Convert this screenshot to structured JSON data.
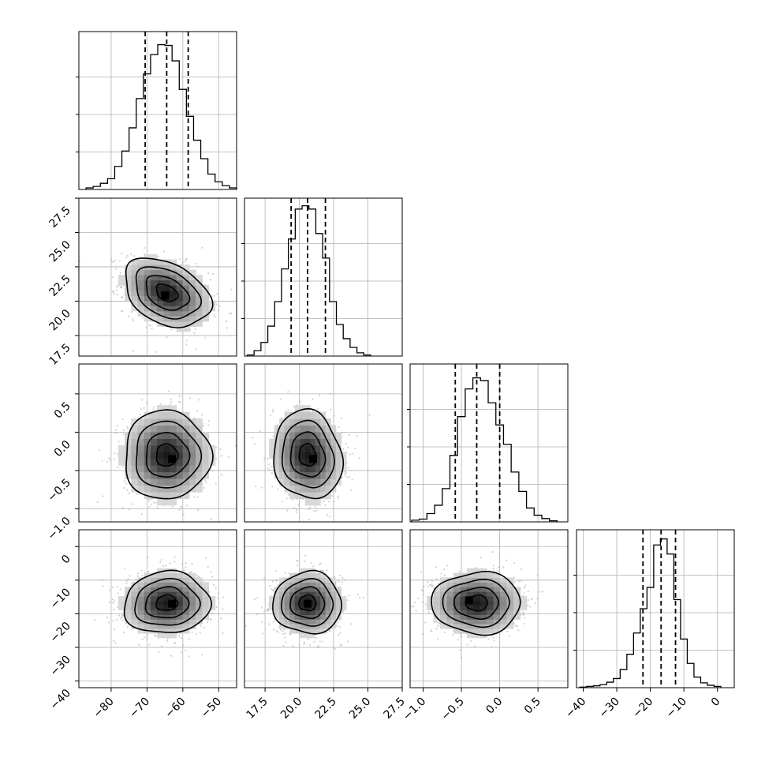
{
  "chart_data": {
    "type": "corner",
    "variables": [
      {
        "range": [
          -89,
          -45
        ],
        "ticks": [
          -80,
          -70,
          -60,
          -50
        ],
        "tick_labels": [
          "−80",
          "−70",
          "−60",
          "−50"
        ]
      },
      {
        "range": [
          16,
          27.5
        ],
        "ticks": [
          17.5,
          20.0,
          22.5,
          25.0,
          27.5
        ],
        "tick_labels": [
          "17.5",
          "20.0",
          "22.5",
          "25.0",
          "27.5"
        ]
      },
      {
        "range": [
          -1.17,
          0.89
        ],
        "ticks": [
          -1.0,
          -0.5,
          0.0,
          0.5
        ],
        "tick_labels": [
          "−1.0",
          "−0.5",
          "0.0",
          "0.5"
        ]
      },
      {
        "range": [
          -42,
          5
        ],
        "ticks": [
          -40,
          -30,
          -20,
          -10,
          0
        ],
        "tick_labels": [
          "−40",
          "−30",
          "−20",
          "−10",
          "0"
        ]
      }
    ],
    "histograms": [
      {
        "quantiles": [
          -70.5,
          -64.5,
          -58.5
        ],
        "edges": [
          -87,
          -85,
          -83,
          -81,
          -79,
          -77,
          -75,
          -73,
          -71,
          -69,
          -67,
          -65,
          -63,
          -61,
          -59,
          -57,
          -55,
          -53,
          -51,
          -49,
          -47,
          -45
        ],
        "counts": [
          2,
          4,
          8,
          14,
          30,
          50,
          80,
          118,
          150,
          175,
          188,
          187,
          167,
          130,
          95,
          64,
          40,
          20,
          10,
          5,
          2
        ],
        "ylim": [
          0,
          205
        ]
      },
      {
        "quantiles": [
          19.4,
          20.6,
          21.9
        ],
        "edges": [
          16.2,
          16.7,
          17.2,
          17.7,
          18.2,
          18.7,
          19.2,
          19.7,
          20.2,
          20.7,
          21.2,
          21.7,
          22.2,
          22.7,
          23.2,
          23.7,
          24.2,
          24.7,
          25.2
        ],
        "counts": [
          2,
          10,
          25,
          55,
          100,
          160,
          215,
          270,
          276,
          270,
          225,
          180,
          100,
          58,
          32,
          16,
          6,
          2
        ],
        "ylim": [
          0,
          290
        ]
      },
      {
        "quantiles": [
          -0.58,
          -0.3,
          0.0
        ],
        "edges": [
          -1.15,
          -1.05,
          -0.95,
          -0.85,
          -0.75,
          -0.65,
          -0.55,
          -0.45,
          -0.35,
          -0.25,
          -0.15,
          -0.05,
          0.05,
          0.15,
          0.25,
          0.35,
          0.45,
          0.55,
          0.65,
          0.75
        ],
        "counts": [
          3,
          5,
          15,
          30,
          60,
          120,
          190,
          240,
          260,
          255,
          215,
          175,
          140,
          90,
          55,
          25,
          12,
          6,
          2
        ],
        "ylim": [
          0,
          285
        ]
      },
      {
        "quantiles": [
          -22.2,
          -16.8,
          -12.5
        ],
        "edges": [
          -41,
          -39,
          -37,
          -35,
          -33,
          -31,
          -29,
          -27,
          -25,
          -23,
          -21,
          -19,
          -17,
          -15,
          -13,
          -11,
          -9,
          -7,
          -5,
          -3,
          -1,
          1
        ],
        "counts": [
          2,
          4,
          6,
          10,
          18,
          30,
          60,
          110,
          180,
          260,
          330,
          470,
          490,
          440,
          290,
          160,
          80,
          35,
          16,
          8,
          4
        ],
        "ylim": [
          0,
          520
        ]
      }
    ],
    "joint": [
      {
        "x": 0,
        "y": 1,
        "mean": [
          -64.5,
          20.6
        ],
        "sd": [
          6.0,
          1.25
        ],
        "rho": -0.35,
        "density_peak": [
          -65,
          20.4
        ]
      },
      {
        "x": 0,
        "y": 2,
        "mean": [
          -64.5,
          -0.3
        ],
        "sd": [
          6.0,
          0.29
        ],
        "rho": 0.0,
        "density_peak": [
          -63,
          -0.35
        ]
      },
      {
        "x": 1,
        "y": 2,
        "mean": [
          20.6,
          -0.3
        ],
        "sd": [
          1.25,
          0.29
        ],
        "rho": -0.1,
        "density_peak": [
          21.0,
          -0.35
        ]
      },
      {
        "x": 0,
        "y": 3,
        "mean": [
          -64.5,
          -16.8
        ],
        "sd": [
          6.0,
          4.6
        ],
        "rho": 0.05,
        "density_peak": [
          -63,
          -17
        ]
      },
      {
        "x": 1,
        "y": 3,
        "mean": [
          20.6,
          -16.8
        ],
        "sd": [
          1.25,
          4.6
        ],
        "rho": 0.0,
        "density_peak": [
          20.6,
          -17
        ]
      },
      {
        "x": 2,
        "y": 3,
        "mean": [
          -0.3,
          -16.8
        ],
        "sd": [
          0.29,
          4.6
        ],
        "rho": 0.0,
        "density_peak": [
          -0.4,
          -16
        ]
      }
    ],
    "contour_levels_sigma": [
      0.5,
      1.0,
      1.5,
      2.0
    ],
    "grid": true
  }
}
